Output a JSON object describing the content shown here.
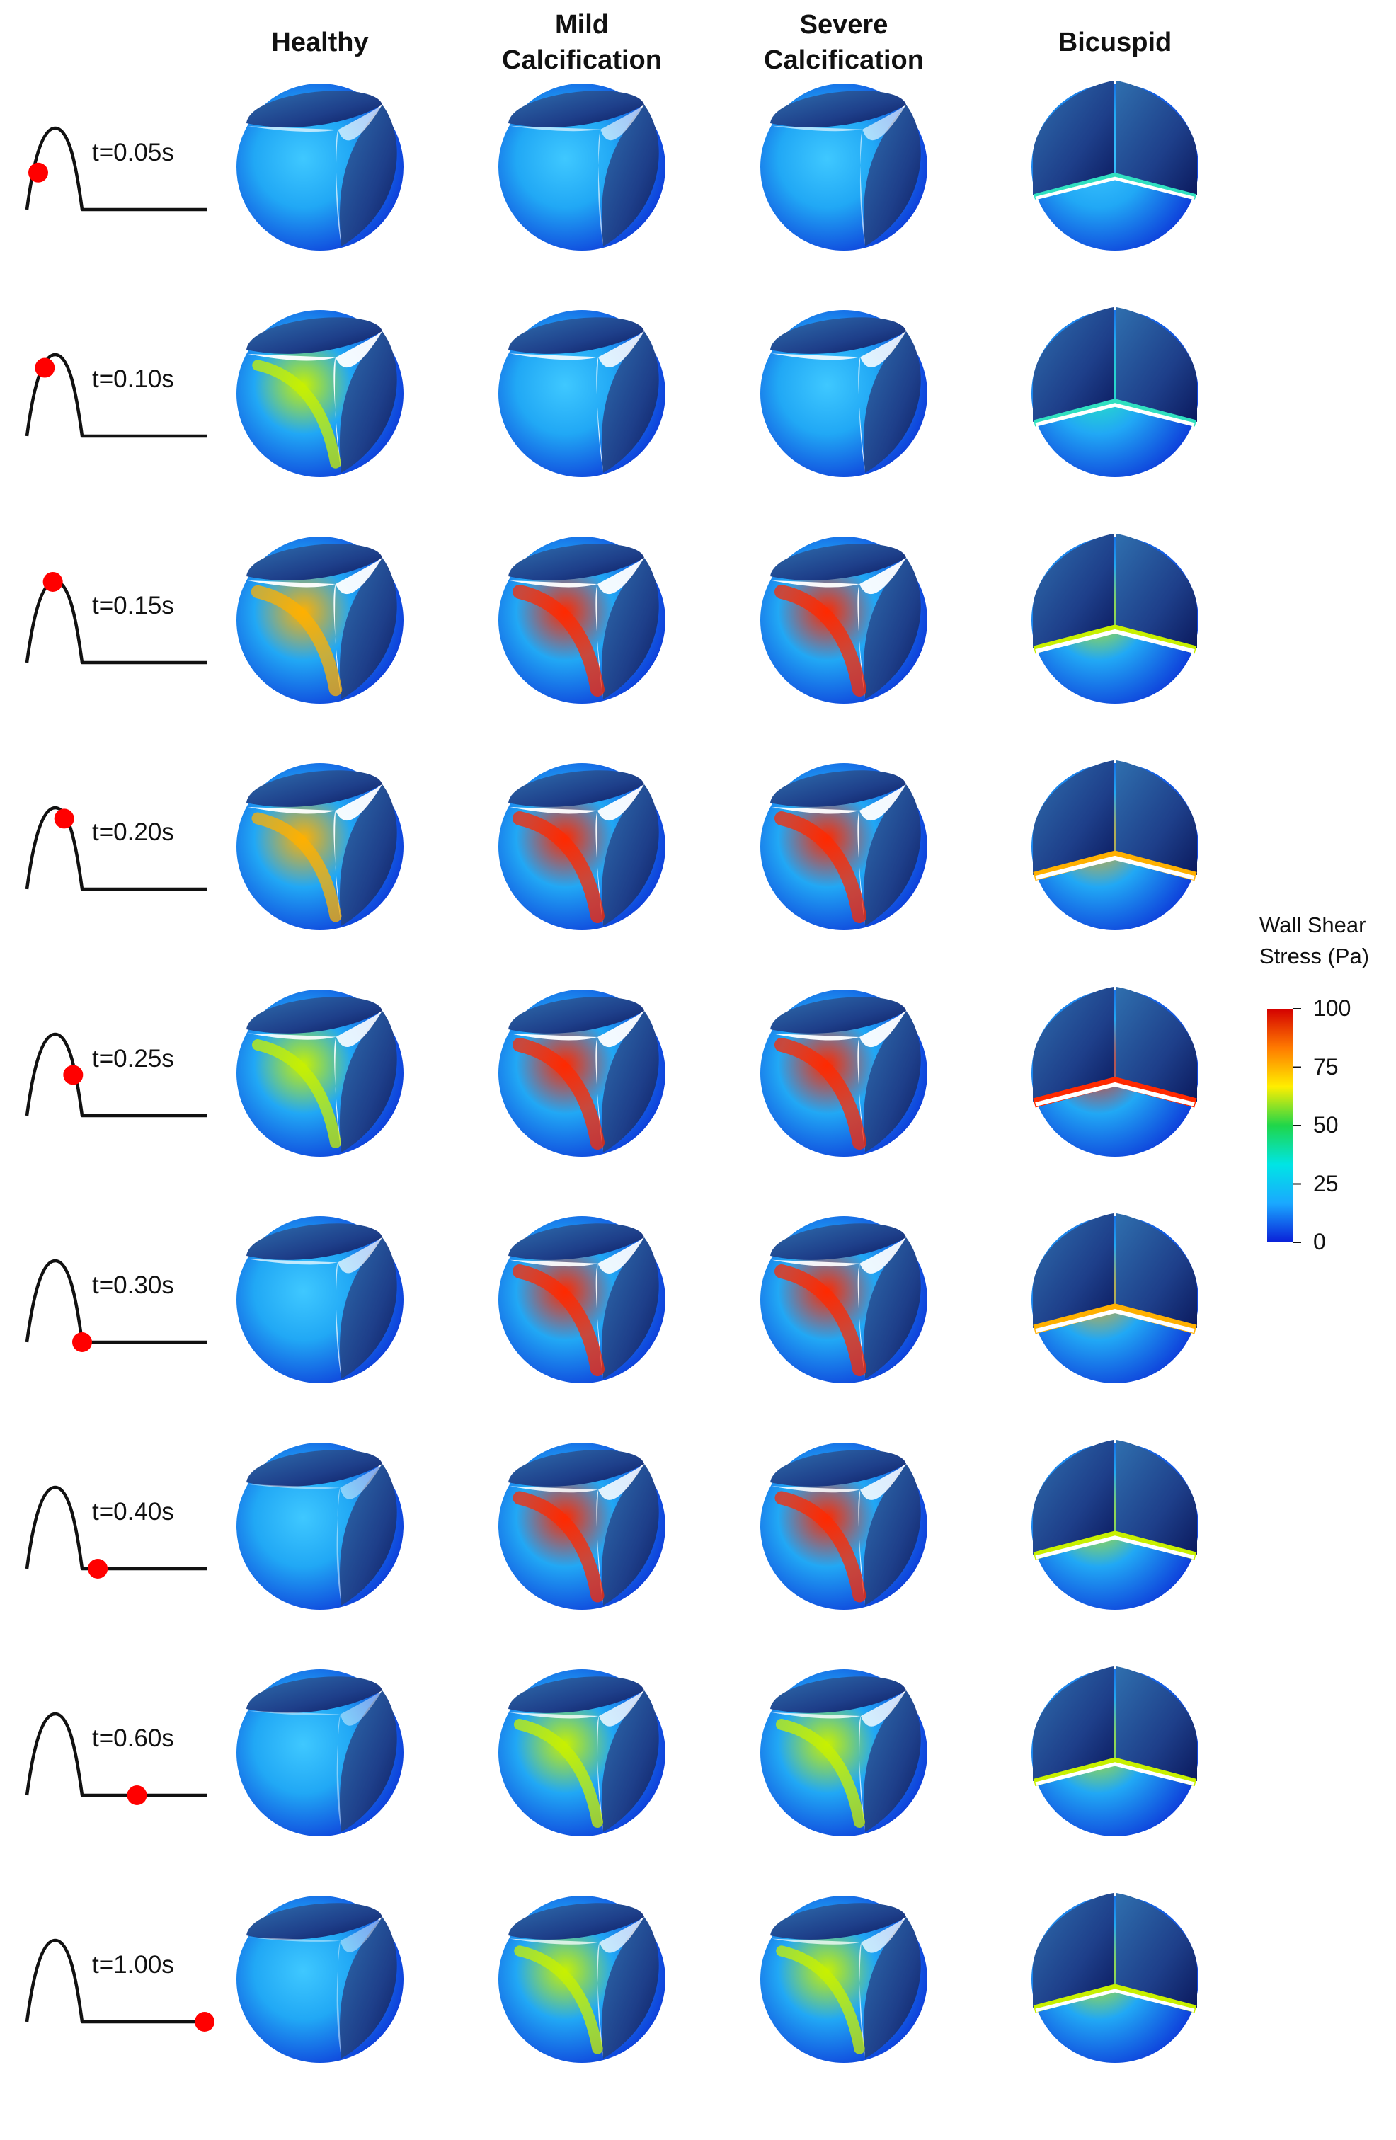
{
  "columns": [
    {
      "id": "healthy",
      "lines": [
        "Healthy"
      ],
      "type": "tricuspid"
    },
    {
      "id": "mild",
      "lines": [
        "Mild",
        "Calcification"
      ],
      "type": "tricuspid"
    },
    {
      "id": "severe",
      "lines": [
        "Severe",
        "Calcification"
      ],
      "type": "tricuspid"
    },
    {
      "id": "bicuspid",
      "lines": [
        "Bicuspid"
      ],
      "type": "bicuspid"
    }
  ],
  "rows": [
    {
      "time": "t=0.05s",
      "marker_phase": 0.18,
      "openness": [
        0.55,
        0.45,
        0.45,
        0.55
      ],
      "wss_peak": [
        20,
        20,
        20,
        22
      ]
    },
    {
      "time": "t=0.10s",
      "marker_phase": 0.38,
      "openness": [
        1.0,
        0.85,
        0.85,
        0.8
      ],
      "wss_peak": [
        55,
        35,
        35,
        40
      ]
    },
    {
      "time": "t=0.15s",
      "marker_phase": 0.55,
      "openness": [
        1.0,
        1.0,
        1.0,
        1.0
      ],
      "wss_peak": [
        85,
        100,
        100,
        60
      ]
    },
    {
      "time": "t=0.20s",
      "marker_phase": 0.68,
      "openness": [
        1.0,
        1.0,
        1.0,
        1.0
      ],
      "wss_peak": [
        70,
        100,
        100,
        80
      ]
    },
    {
      "time": "t=0.25s",
      "marker_phase": 0.76,
      "openness": [
        0.9,
        1.0,
        1.0,
        1.0
      ],
      "wss_peak": [
        60,
        100,
        100,
        90
      ]
    },
    {
      "time": "t=0.30s",
      "marker_phase": 0.84,
      "openness": [
        0.6,
        0.95,
        0.95,
        0.95
      ],
      "wss_peak": [
        30,
        100,
        100,
        85
      ]
    },
    {
      "time": "t=0.40s",
      "marker_phase": 0.86,
      "openness": [
        0.2,
        0.85,
        0.85,
        0.8
      ],
      "wss_peak": [
        15,
        90,
        90,
        60
      ]
    },
    {
      "time": "t=0.60s",
      "marker_phase": 0.91,
      "openness": [
        0.15,
        0.75,
        0.75,
        0.75
      ],
      "wss_peak": [
        10,
        60,
        60,
        55
      ]
    },
    {
      "time": "t=1.00s",
      "marker_phase": 1.0,
      "openness": [
        0.15,
        0.65,
        0.65,
        0.65
      ],
      "wss_peak": [
        10,
        55,
        55,
        55
      ]
    }
  ],
  "legend": {
    "title_lines": [
      "Wall Shear",
      "Stress (Pa)"
    ],
    "ticks": [
      "100",
      "75",
      "50",
      "25",
      "0"
    ],
    "colors": [
      "#d40000",
      "#ff7a00",
      "#ffee00",
      "#1fd64a",
      "#00e5e5",
      "#1aa8ff",
      "#0a1fd8"
    ]
  },
  "colors": {
    "marker": "#ff0000",
    "leaflet_dark": "#0b1a5e",
    "leaflet_mid": "#1e3f8a",
    "background": "#ffffff",
    "waveform": "#111111"
  }
}
